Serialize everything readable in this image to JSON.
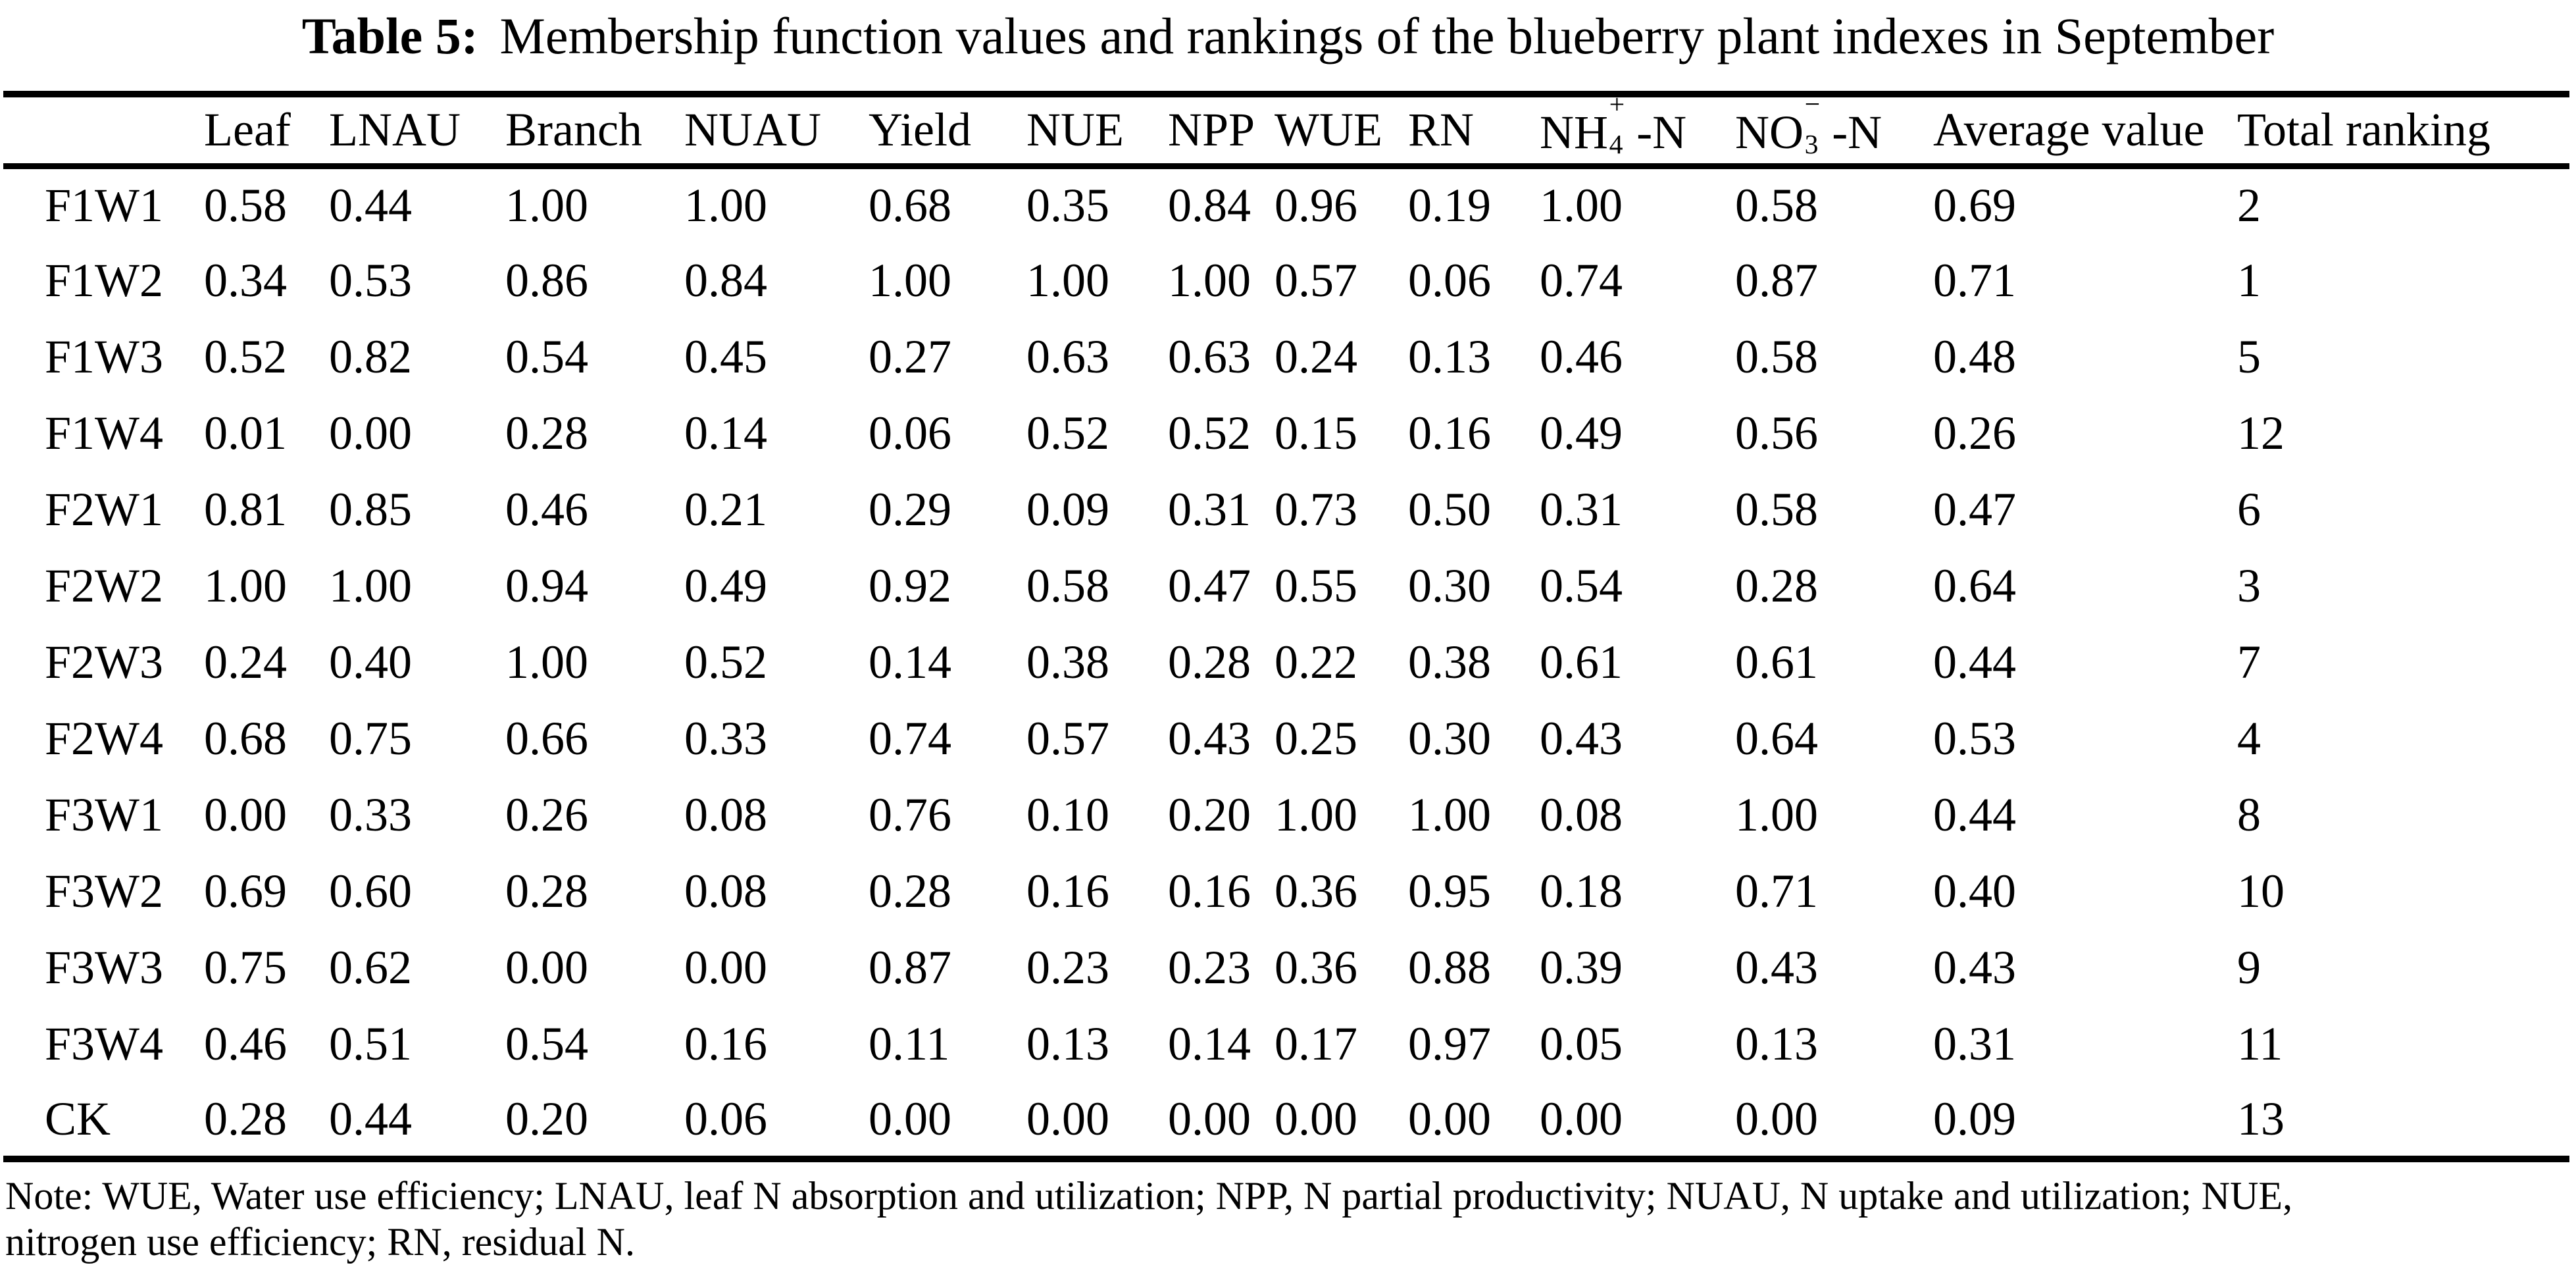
{
  "title": {
    "label": "Table 5:",
    "text": "Membership function values and rankings of the blueberry plant indexes in September"
  },
  "table": {
    "header": {
      "row_label": "",
      "leaf": "Leaf",
      "lnau": "LNAU",
      "branch": "Branch",
      "nuau": "NUAU",
      "yield": "Yield",
      "nue": "NUE",
      "npp": "NPP",
      "wue": "WUE",
      "rn": "RN",
      "nh4": {
        "base": "NH",
        "sub": "4",
        "sup": "+",
        "rest": "-N"
      },
      "no3": {
        "base": "NO",
        "sub": "3",
        "sup": "−",
        "rest": "-N"
      },
      "average": "Average value",
      "ranking": "Total ranking"
    },
    "rows": [
      {
        "label": "F1W1",
        "values": [
          "0.58",
          "0.44",
          "1.00",
          "1.00",
          "0.68",
          "0.35",
          "0.84",
          "0.96",
          "0.19",
          "1.00",
          "0.58",
          "0.69",
          "2"
        ]
      },
      {
        "label": "F1W2",
        "values": [
          "0.34",
          "0.53",
          "0.86",
          "0.84",
          "1.00",
          "1.00",
          "1.00",
          "0.57",
          "0.06",
          "0.74",
          "0.87",
          "0.71",
          "1"
        ]
      },
      {
        "label": "F1W3",
        "values": [
          "0.52",
          "0.82",
          "0.54",
          "0.45",
          "0.27",
          "0.63",
          "0.63",
          "0.24",
          "0.13",
          "0.46",
          "0.58",
          "0.48",
          "5"
        ]
      },
      {
        "label": "F1W4",
        "values": [
          "0.01",
          "0.00",
          "0.28",
          "0.14",
          "0.06",
          "0.52",
          "0.52",
          "0.15",
          "0.16",
          "0.49",
          "0.56",
          "0.26",
          "12"
        ]
      },
      {
        "label": "F2W1",
        "values": [
          "0.81",
          "0.85",
          "0.46",
          "0.21",
          "0.29",
          "0.09",
          "0.31",
          "0.73",
          "0.50",
          "0.31",
          "0.58",
          "0.47",
          "6"
        ]
      },
      {
        "label": "F2W2",
        "values": [
          "1.00",
          "1.00",
          "0.94",
          "0.49",
          "0.92",
          "0.58",
          "0.47",
          "0.55",
          "0.30",
          "0.54",
          "0.28",
          "0.64",
          "3"
        ]
      },
      {
        "label": "F2W3",
        "values": [
          "0.24",
          "0.40",
          "1.00",
          "0.52",
          "0.14",
          "0.38",
          "0.28",
          "0.22",
          "0.38",
          "0.61",
          "0.61",
          "0.44",
          "7"
        ]
      },
      {
        "label": "F2W4",
        "values": [
          "0.68",
          "0.75",
          "0.66",
          "0.33",
          "0.74",
          "0.57",
          "0.43",
          "0.25",
          "0.30",
          "0.43",
          "0.64",
          "0.53",
          "4"
        ]
      },
      {
        "label": "F3W1",
        "values": [
          "0.00",
          "0.33",
          "0.26",
          "0.08",
          "0.76",
          "0.10",
          "0.20",
          "1.00",
          "1.00",
          "0.08",
          "1.00",
          "0.44",
          "8"
        ]
      },
      {
        "label": "F3W2",
        "values": [
          "0.69",
          "0.60",
          "0.28",
          "0.08",
          "0.28",
          "0.16",
          "0.16",
          "0.36",
          "0.95",
          "0.18",
          "0.71",
          "0.40",
          "10"
        ]
      },
      {
        "label": "F3W3",
        "values": [
          "0.75",
          "0.62",
          "0.00",
          "0.00",
          "0.87",
          "0.23",
          "0.23",
          "0.36",
          "0.88",
          "0.39",
          "0.43",
          "0.43",
          "9"
        ]
      },
      {
        "label": "F3W4",
        "values": [
          "0.46",
          "0.51",
          "0.54",
          "0.16",
          "0.11",
          "0.13",
          "0.14",
          "0.17",
          "0.97",
          "0.05",
          "0.13",
          "0.31",
          "11"
        ]
      },
      {
        "label": "CK",
        "values": [
          "0.28",
          "0.44",
          "0.20",
          "0.06",
          "0.00",
          "0.00",
          "0.00",
          "0.00",
          "0.00",
          "0.00",
          "0.00",
          "0.09",
          "13"
        ]
      }
    ]
  },
  "note": {
    "line1": "Note: WUE, Water use efficiency; LNAU, leaf N absorption and utilization; NPP, N partial productivity; NUAU, N uptake and utilization; NUE,",
    "line2": "nitrogen use efficiency; RN, residual N."
  }
}
